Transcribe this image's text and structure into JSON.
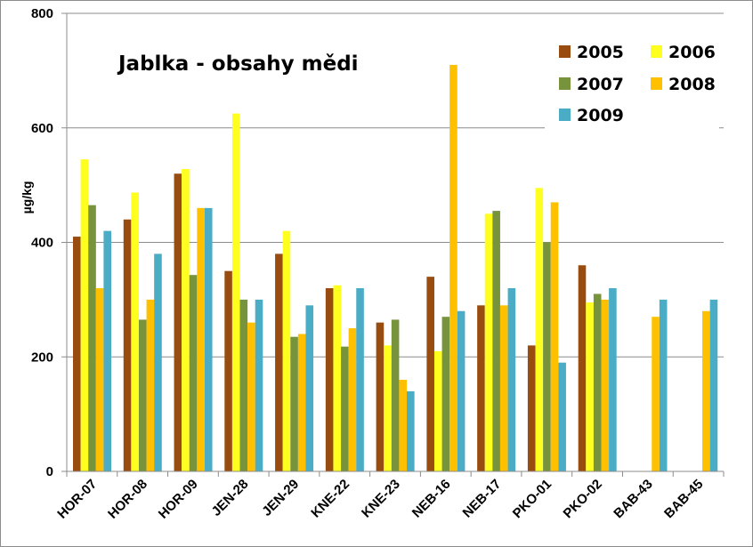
{
  "chart_data": {
    "type": "bar",
    "title": "Jablka - obsahy mědi",
    "ylabel": "µg/kg",
    "xlabel": "",
    "ylim": [
      0,
      800
    ],
    "yticks": [
      0,
      200,
      400,
      600,
      800
    ],
    "grid": true,
    "legend_position": "top-right",
    "categories": [
      "HOR-07",
      "HOR-08",
      "HOR-09",
      "JEN-28",
      "JEN-29",
      "KNE-22",
      "KNE-23",
      "NEB-16",
      "NEB-17",
      "PKO-01",
      "PKO-02",
      "BAB-43",
      "BAB-45"
    ],
    "series": [
      {
        "name": "2005",
        "color": "#994c0f",
        "values": [
          410,
          440,
          520,
          350,
          380,
          320,
          260,
          340,
          290,
          220,
          360,
          null,
          null
        ]
      },
      {
        "name": "2006",
        "color": "#ffff1f",
        "values": [
          545,
          487,
          528,
          625,
          420,
          325,
          220,
          210,
          450,
          495,
          295,
          null,
          null
        ]
      },
      {
        "name": "2007",
        "color": "#77933c",
        "values": [
          465,
          265,
          343,
          300,
          235,
          218,
          265,
          270,
          455,
          400,
          310,
          null,
          null
        ]
      },
      {
        "name": "2008",
        "color": "#ffc000",
        "values": [
          320,
          300,
          460,
          260,
          240,
          250,
          160,
          710,
          290,
          470,
          300,
          270,
          280
        ]
      },
      {
        "name": "2009",
        "color": "#4bacc6",
        "values": [
          420,
          380,
          460,
          300,
          290,
          320,
          140,
          280,
          320,
          190,
          320,
          300,
          300
        ]
      }
    ]
  }
}
